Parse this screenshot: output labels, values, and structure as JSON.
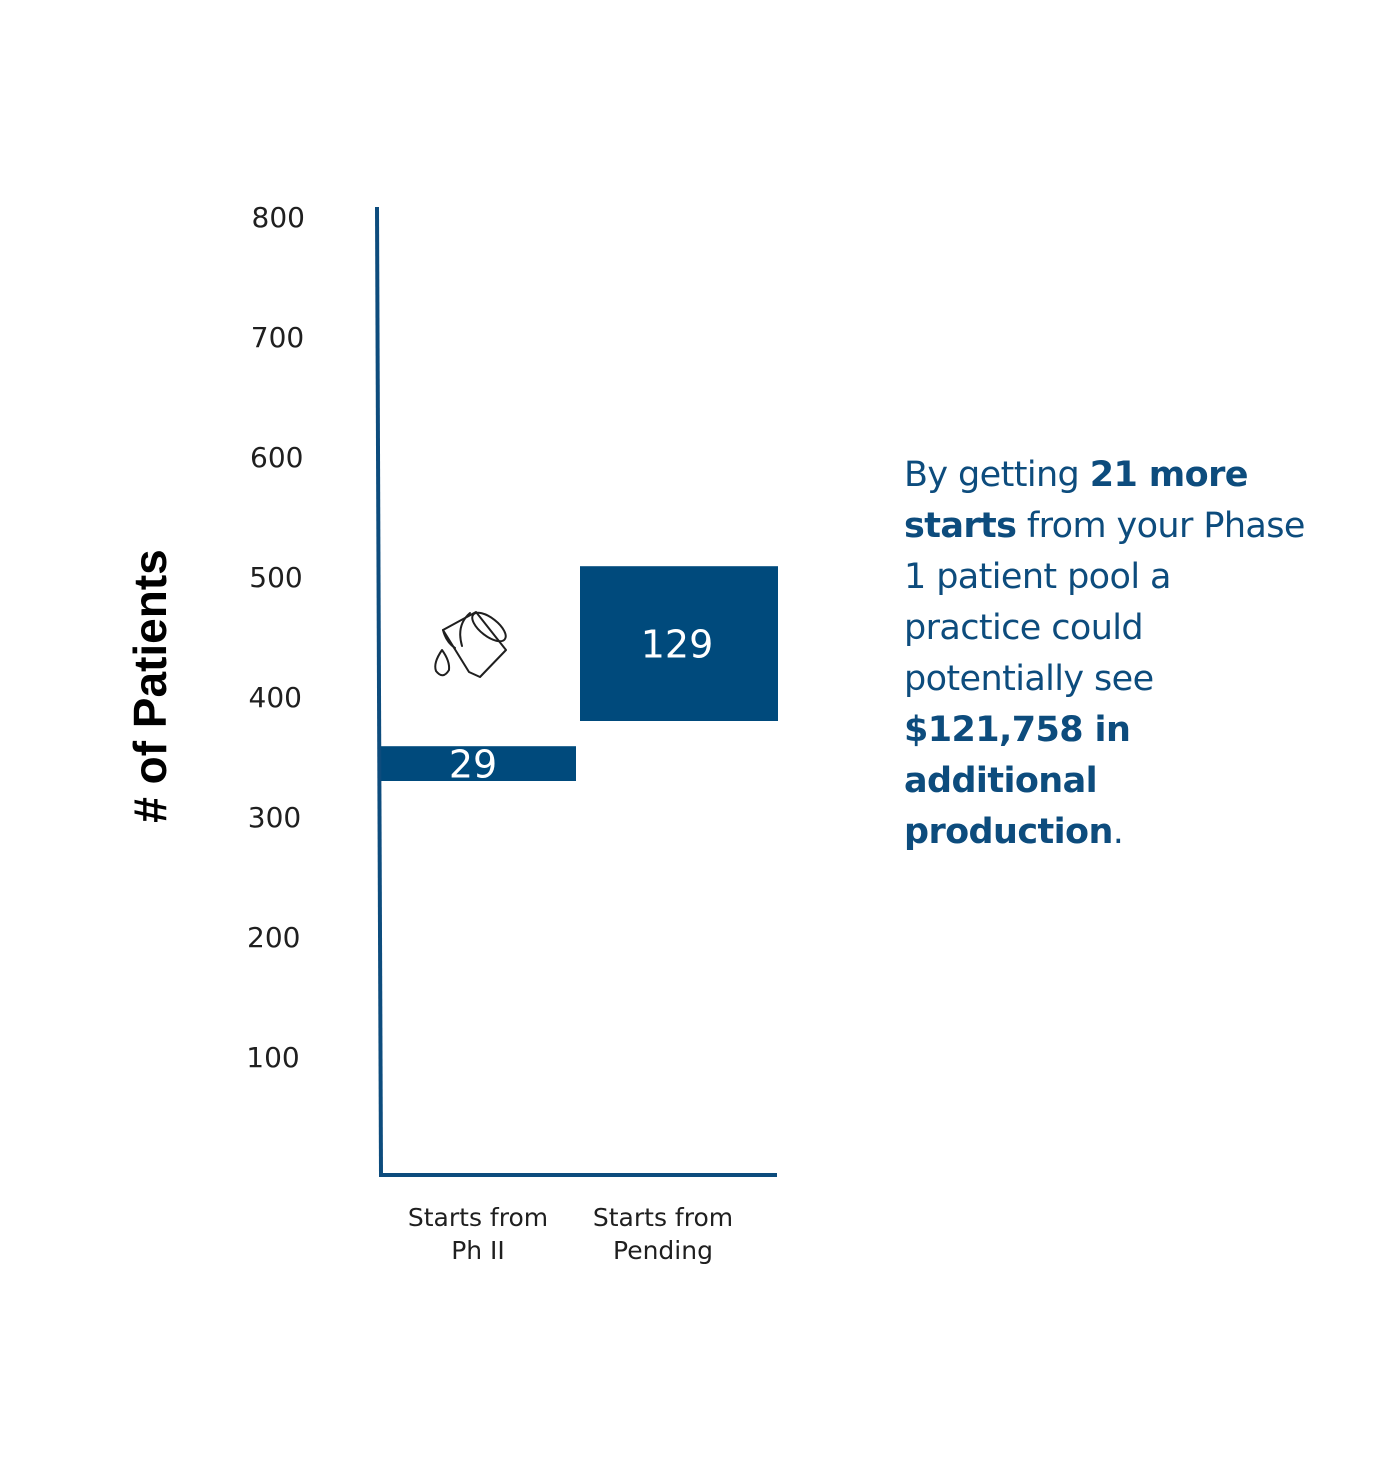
{
  "colors": {
    "bar": "#004a7c",
    "axis": "#0d4c7d",
    "text_dark": "#1f1f1f",
    "callout": "#0d4c7d"
  },
  "chart_data": {
    "type": "bar",
    "subtype": "waterfall",
    "ylabel": "# of Patients",
    "ylim": [
      0,
      800
    ],
    "yticks": [
      "100",
      "200",
      "300",
      "400",
      "500",
      "600",
      "700",
      "800"
    ],
    "categories": [
      "Starts from Ph II",
      "Starts from Pending"
    ],
    "category_lines": [
      [
        "Starts from",
        "Ph II"
      ],
      [
        "Starts from",
        "Pending"
      ]
    ],
    "values": [
      29,
      129
    ],
    "bases": [
      330,
      380
    ],
    "value_labels": [
      "29",
      "129"
    ],
    "grid": false,
    "legend": "none"
  },
  "icon": "pouring-bucket-icon",
  "callout": {
    "p1": "By getting ",
    "b1": "21 more starts",
    "p2": " from your Phase 1 patient pool a practice could potentially see ",
    "b2": "$121,758 in additional production",
    "p3": "."
  }
}
